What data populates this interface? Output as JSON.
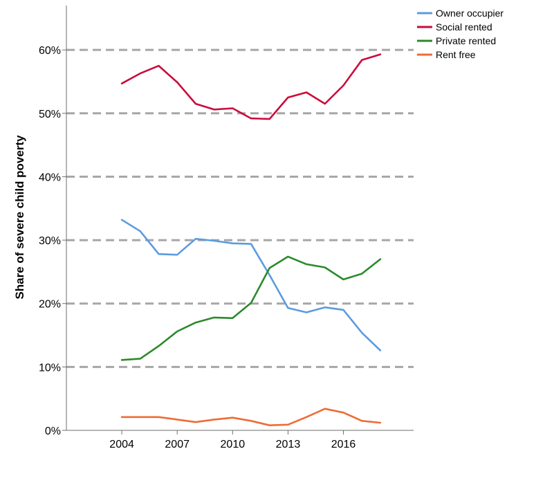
{
  "chart_data": {
    "type": "line",
    "title": "",
    "xlabel": "",
    "ylabel": "Share of severe child poverty",
    "x": [
      2004,
      2005,
      2006,
      2007,
      2008,
      2009,
      2010,
      2011,
      2012,
      2013,
      2014,
      2015,
      2016,
      2017,
      2018
    ],
    "xlim": [
      2001,
      2019.8
    ],
    "x_ticks": [
      2004,
      2007,
      2010,
      2013,
      2016
    ],
    "x_tick_labels": [
      "2004",
      "2007",
      "2010",
      "2013",
      "2016"
    ],
    "ylim": [
      0,
      67
    ],
    "y_ticks": [
      0,
      10,
      20,
      30,
      40,
      50,
      60
    ],
    "y_tick_labels": [
      "0%",
      "10%",
      "20%",
      "30%",
      "40%",
      "50%",
      "60%"
    ],
    "grid": "horizontal dashed at 10% to 60%",
    "legend_position": "top-right",
    "series": [
      {
        "name": "Owner occupier",
        "color": "#5b9bdf",
        "values": [
          33.2,
          31.4,
          27.8,
          27.7,
          30.2,
          29.9,
          29.5,
          29.4,
          24.5,
          19.3,
          18.6,
          19.4,
          19.0,
          15.4,
          12.6
        ]
      },
      {
        "name": "Social rented",
        "color": "#cc0a3c",
        "values": [
          54.7,
          56.3,
          57.5,
          54.9,
          51.5,
          50.6,
          50.8,
          49.2,
          49.1,
          52.5,
          53.3,
          51.5,
          54.4,
          58.4,
          59.3
        ]
      },
      {
        "name": "Private rented",
        "color": "#2b8a2b",
        "values": [
          11.1,
          11.3,
          13.3,
          15.6,
          17.0,
          17.8,
          17.7,
          20.1,
          25.6,
          27.4,
          26.2,
          25.7,
          23.8,
          24.7,
          27.0
        ]
      },
      {
        "name": "Rent free",
        "color": "#ef6b34",
        "values": [
          2.1,
          2.1,
          2.1,
          1.7,
          1.3,
          1.7,
          2.0,
          1.5,
          0.8,
          0.9,
          2.1,
          3.4,
          2.8,
          1.5,
          1.2
        ]
      }
    ]
  }
}
